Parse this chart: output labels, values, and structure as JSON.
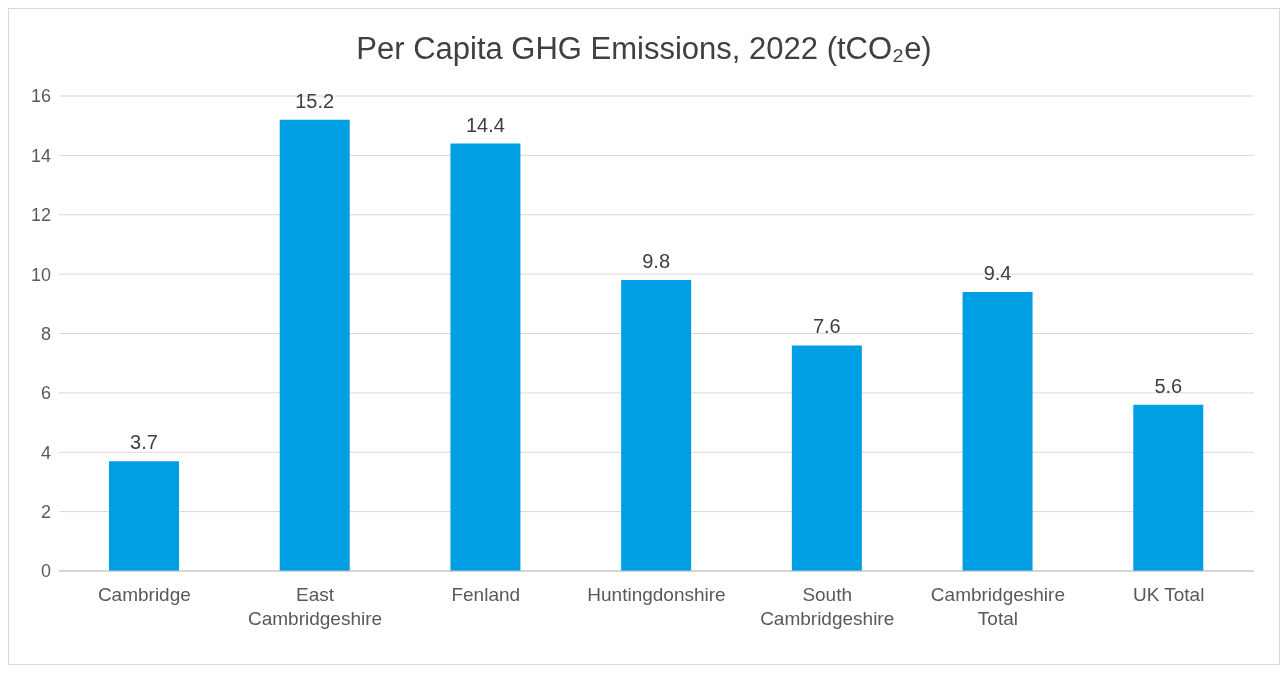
{
  "chart_data": {
    "type": "bar",
    "title": "Per Capita GHG Emissions, 2022 (tCO₂e)",
    "categories": [
      "Cambridge",
      "East Cambridgeshire",
      "Fenland",
      "Huntingdonshire",
      "South Cambridgeshire",
      "Cambridgeshire Total",
      "UK Total"
    ],
    "values": [
      3.7,
      15.2,
      14.4,
      9.8,
      7.6,
      9.4,
      5.6
    ],
    "color": "#009fe3",
    "ylim": [
      0,
      16
    ],
    "yticks": [
      0,
      2,
      4,
      6,
      8,
      10,
      12,
      14,
      16
    ],
    "grid": "y",
    "data_labels": true,
    "legend": false
  }
}
